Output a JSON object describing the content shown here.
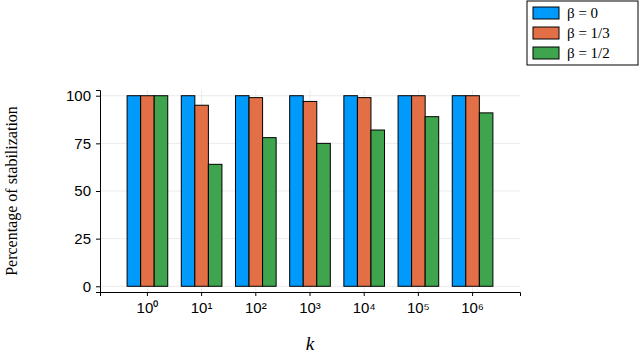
{
  "chart_data": {
    "type": "bar",
    "x_label": "k",
    "y_label": "Percentage of stabilization",
    "categories": [
      "10⁰",
      "10¹",
      "10²",
      "10³",
      "10⁴",
      "10⁵",
      "10⁶"
    ],
    "series": [
      {
        "name": "β = 0",
        "color": "#009afa",
        "values": [
          100,
          100,
          100,
          100,
          100,
          100,
          100
        ]
      },
      {
        "name": "β = 1/3",
        "color": "#e36f47",
        "values": [
          100,
          95,
          99,
          97,
          99,
          100,
          100
        ]
      },
      {
        "name": "β = 1/2",
        "color": "#3ea44e",
        "values": [
          100,
          64,
          78,
          75,
          82,
          89,
          91
        ]
      }
    ],
    "ylim": [
      -3,
      103
    ],
    "yticks": [
      0,
      25,
      50,
      75,
      100
    ],
    "grid": true,
    "legend": "outside-top-right"
  }
}
